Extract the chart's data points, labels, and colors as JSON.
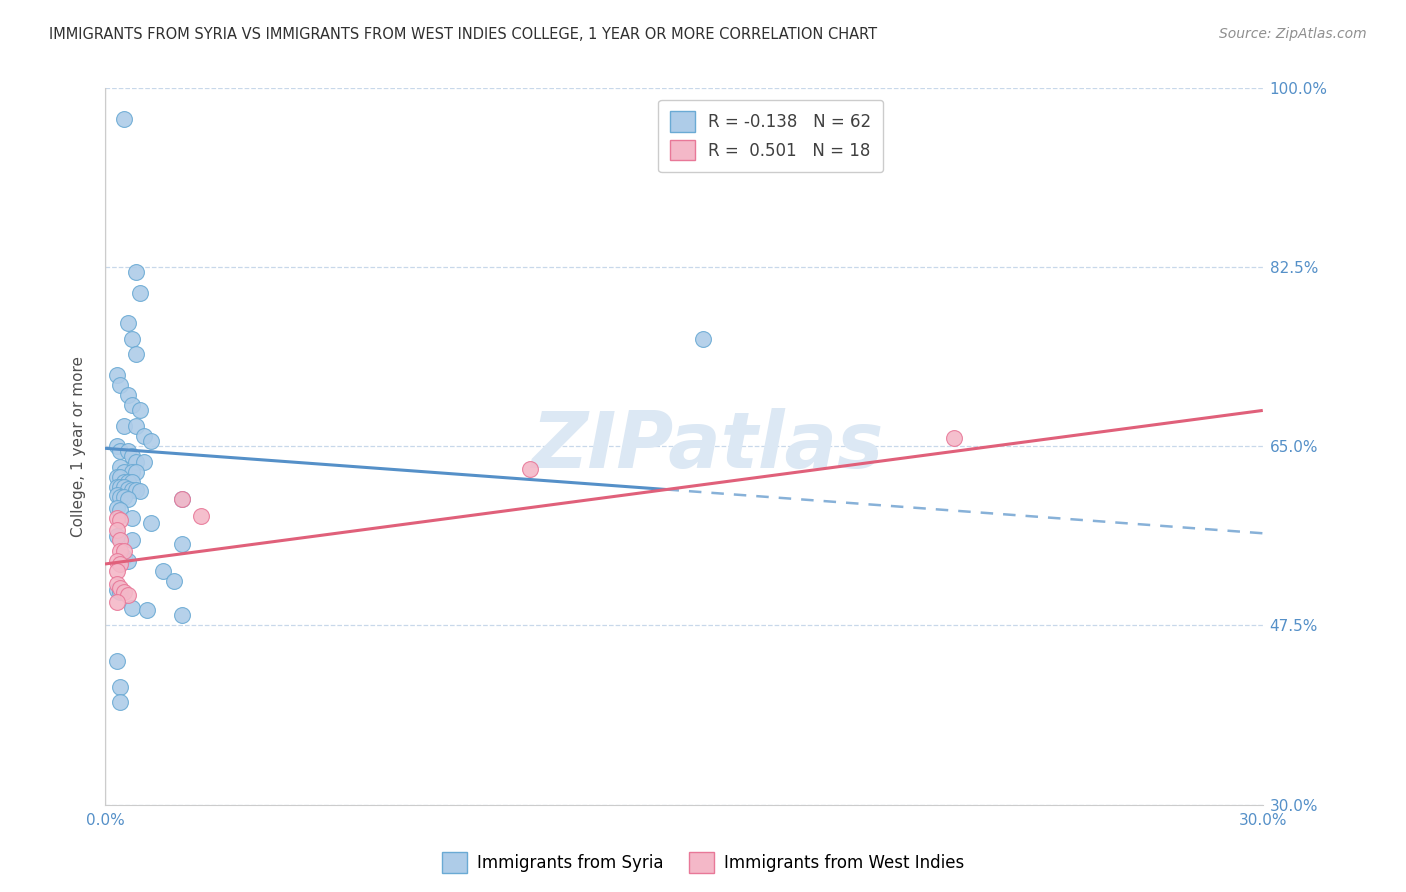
{
  "title": "IMMIGRANTS FROM SYRIA VS IMMIGRANTS FROM WEST INDIES COLLEGE, 1 YEAR OR MORE CORRELATION CHART",
  "source": "Source: ZipAtlas.com",
  "ylabel": "College, 1 year or more",
  "xmin": 0.0,
  "xmax": 0.3,
  "ymin": 0.3,
  "ymax": 1.0,
  "yticks": [
    0.3,
    0.475,
    0.65,
    0.825,
    1.0
  ],
  "ytick_labels": [
    "30.0%",
    "47.5%",
    "65.0%",
    "82.5%",
    "100.0%"
  ],
  "xticks": [
    0.0,
    0.05,
    0.1,
    0.15,
    0.2,
    0.25,
    0.3
  ],
  "xtick_labels": [
    "0.0%",
    "",
    "",
    "",
    "",
    "",
    "30.0%"
  ],
  "blue_R": -0.138,
  "blue_N": 62,
  "pink_R": 0.501,
  "pink_N": 18,
  "blue_color": "#aecce8",
  "blue_edge_color": "#6aaad4",
  "blue_line_color": "#5590c8",
  "pink_color": "#f4b8c8",
  "pink_edge_color": "#e87898",
  "pink_line_color": "#e0607a",
  "blue_scatter": [
    [
      0.005,
      0.97
    ],
    [
      0.008,
      0.82
    ],
    [
      0.009,
      0.8
    ],
    [
      0.006,
      0.77
    ],
    [
      0.007,
      0.755
    ],
    [
      0.008,
      0.74
    ],
    [
      0.003,
      0.72
    ],
    [
      0.004,
      0.71
    ],
    [
      0.006,
      0.7
    ],
    [
      0.007,
      0.69
    ],
    [
      0.009,
      0.685
    ],
    [
      0.005,
      0.67
    ],
    [
      0.008,
      0.67
    ],
    [
      0.01,
      0.66
    ],
    [
      0.012,
      0.655
    ],
    [
      0.003,
      0.65
    ],
    [
      0.004,
      0.645
    ],
    [
      0.006,
      0.645
    ],
    [
      0.007,
      0.64
    ],
    [
      0.008,
      0.635
    ],
    [
      0.01,
      0.635
    ],
    [
      0.004,
      0.63
    ],
    [
      0.005,
      0.625
    ],
    [
      0.007,
      0.625
    ],
    [
      0.008,
      0.625
    ],
    [
      0.003,
      0.62
    ],
    [
      0.004,
      0.62
    ],
    [
      0.005,
      0.615
    ],
    [
      0.006,
      0.615
    ],
    [
      0.007,
      0.615
    ],
    [
      0.003,
      0.61
    ],
    [
      0.004,
      0.61
    ],
    [
      0.005,
      0.61
    ],
    [
      0.006,
      0.608
    ],
    [
      0.007,
      0.607
    ],
    [
      0.008,
      0.607
    ],
    [
      0.009,
      0.606
    ],
    [
      0.003,
      0.602
    ],
    [
      0.004,
      0.6
    ],
    [
      0.005,
      0.6
    ],
    [
      0.006,
      0.598
    ],
    [
      0.02,
      0.598
    ],
    [
      0.003,
      0.59
    ],
    [
      0.004,
      0.588
    ],
    [
      0.007,
      0.58
    ],
    [
      0.012,
      0.575
    ],
    [
      0.003,
      0.562
    ],
    [
      0.007,
      0.558
    ],
    [
      0.02,
      0.555
    ],
    [
      0.005,
      0.542
    ],
    [
      0.006,
      0.538
    ],
    [
      0.015,
      0.528
    ],
    [
      0.018,
      0.518
    ],
    [
      0.003,
      0.51
    ],
    [
      0.004,
      0.508
    ],
    [
      0.007,
      0.492
    ],
    [
      0.011,
      0.49
    ],
    [
      0.02,
      0.485
    ],
    [
      0.003,
      0.44
    ],
    [
      0.004,
      0.415
    ],
    [
      0.004,
      0.4
    ],
    [
      0.155,
      0.755
    ]
  ],
  "pink_scatter": [
    [
      0.003,
      0.58
    ],
    [
      0.004,
      0.578
    ],
    [
      0.003,
      0.568
    ],
    [
      0.004,
      0.558
    ],
    [
      0.004,
      0.548
    ],
    [
      0.005,
      0.548
    ],
    [
      0.003,
      0.538
    ],
    [
      0.004,
      0.535
    ],
    [
      0.003,
      0.528
    ],
    [
      0.003,
      0.515
    ],
    [
      0.004,
      0.512
    ],
    [
      0.005,
      0.508
    ],
    [
      0.006,
      0.505
    ],
    [
      0.02,
      0.598
    ],
    [
      0.025,
      0.582
    ],
    [
      0.11,
      0.628
    ],
    [
      0.22,
      0.658
    ],
    [
      0.003,
      0.498
    ]
  ],
  "blue_trend_x0": 0.0,
  "blue_trend_y0": 0.648,
  "blue_trend_x1": 0.3,
  "blue_trend_y1": 0.565,
  "pink_trend_x0": 0.0,
  "pink_trend_y0": 0.535,
  "pink_trend_x1": 0.3,
  "pink_trend_y1": 0.685,
  "background_color": "#ffffff",
  "grid_color": "#c8d8ea",
  "title_color": "#303030",
  "axis_label_color": "#5590c8",
  "watermark_text": "ZIPatlas",
  "watermark_color": "#dce8f4"
}
